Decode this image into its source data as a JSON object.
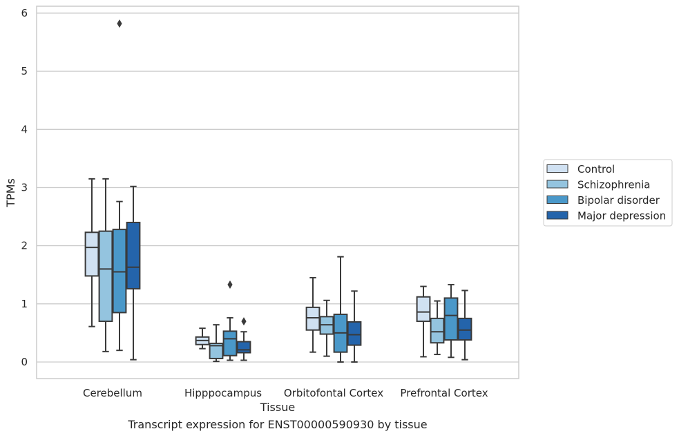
{
  "caption": "Transcript expression for ENST00000590930 by tissue",
  "chart_data": {
    "type": "boxplot",
    "xlabel": "Tissue",
    "ylabel": "TPMs",
    "ylim": [
      -0.28,
      6.12
    ],
    "yticks": [
      0,
      1,
      2,
      3,
      4,
      5,
      6
    ],
    "grid": "horizontal",
    "legend_position": "right",
    "categories": [
      "Cerebellum",
      "Hipppocampus",
      "Orbitofontal Cortex",
      "Prefrontal Cortex"
    ],
    "series": [
      {
        "name": "Control",
        "color": "#d0e1f2",
        "boxes": [
          {
            "whislo": 0.61,
            "q1": 1.48,
            "med": 1.97,
            "q3": 2.23,
            "whishi": 3.15,
            "fliers": []
          },
          {
            "whislo": 0.23,
            "q1": 0.3,
            "med": 0.37,
            "q3": 0.43,
            "whishi": 0.58,
            "fliers": []
          },
          {
            "whislo": 0.17,
            "q1": 0.55,
            "med": 0.76,
            "q3": 0.94,
            "whishi": 1.45,
            "fliers": []
          },
          {
            "whislo": 0.09,
            "q1": 0.7,
            "med": 0.86,
            "q3": 1.12,
            "whishi": 1.3,
            "fliers": []
          }
        ]
      },
      {
        "name": "Schizophrenia",
        "color": "#94c4df",
        "boxes": [
          {
            "whislo": 0.18,
            "q1": 0.7,
            "med": 1.6,
            "q3": 2.25,
            "whishi": 3.15,
            "fliers": []
          },
          {
            "whislo": 0.01,
            "q1": 0.06,
            "med": 0.28,
            "q3": 0.32,
            "whishi": 0.64,
            "fliers": []
          },
          {
            "whislo": 0.1,
            "q1": 0.48,
            "med": 0.64,
            "q3": 0.78,
            "whishi": 1.06,
            "fliers": []
          },
          {
            "whislo": 0.13,
            "q1": 0.33,
            "med": 0.52,
            "q3": 0.75,
            "whishi": 1.05,
            "fliers": []
          }
        ]
      },
      {
        "name": "Bipolar disorder",
        "color": "#4a98c9",
        "boxes": [
          {
            "whislo": 0.2,
            "q1": 0.85,
            "med": 1.55,
            "q3": 2.28,
            "whishi": 2.76,
            "fliers": [
              5.82
            ]
          },
          {
            "whislo": 0.03,
            "q1": 0.11,
            "med": 0.4,
            "q3": 0.53,
            "whishi": 0.76,
            "fliers": [
              1.33
            ]
          },
          {
            "whislo": 0.0,
            "q1": 0.17,
            "med": 0.5,
            "q3": 0.82,
            "whishi": 1.81,
            "fliers": []
          },
          {
            "whislo": 0.08,
            "q1": 0.38,
            "med": 0.8,
            "q3": 1.1,
            "whishi": 1.33,
            "fliers": []
          }
        ]
      },
      {
        "name": "Major depression",
        "color": "#2464ab",
        "boxes": [
          {
            "whislo": 0.04,
            "q1": 1.26,
            "med": 1.63,
            "q3": 2.4,
            "whishi": 3.02,
            "fliers": []
          },
          {
            "whislo": 0.03,
            "q1": 0.16,
            "med": 0.21,
            "q3": 0.35,
            "whishi": 0.52,
            "fliers": [
              0.7
            ]
          },
          {
            "whislo": 0.0,
            "q1": 0.29,
            "med": 0.47,
            "q3": 0.69,
            "whishi": 1.22,
            "fliers": []
          },
          {
            "whislo": 0.04,
            "q1": 0.38,
            "med": 0.55,
            "q3": 0.75,
            "whishi": 1.23,
            "fliers": []
          }
        ]
      }
    ]
  }
}
